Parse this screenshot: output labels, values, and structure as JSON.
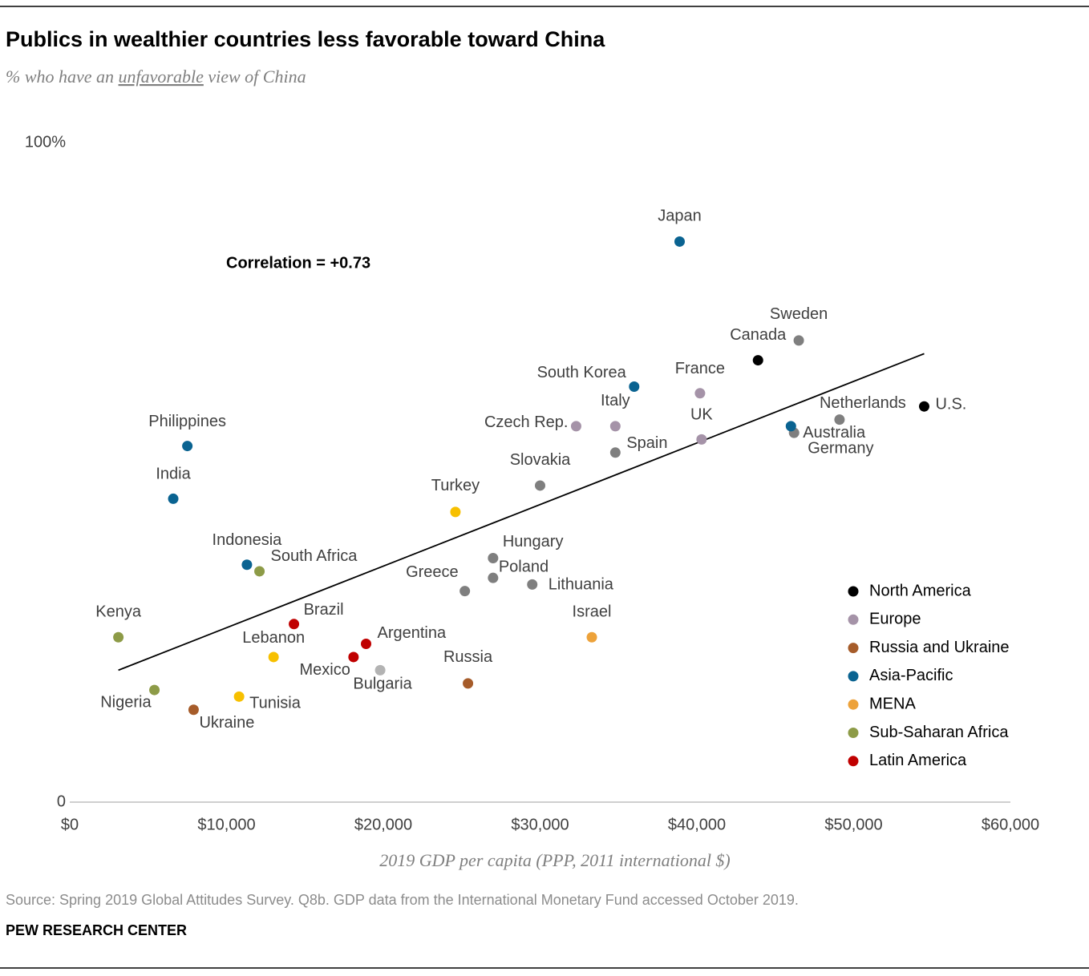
{
  "chart_data": {
    "type": "scatter",
    "title": "Publics in wealthier countries less favorable toward China",
    "subtitle": [
      "% who have an ",
      "unfavorable",
      " view of China"
    ],
    "xlabel": "2019 GDP per capita (PPP, 2011 international $)",
    "annotation": "Correlation = +0.73",
    "source": "Source: Spring 2019 Global Attitudes Survey. Q8b. GDP data from the International Monetary Fund accessed October 2019.",
    "credit": "PEW RESEARCH CENTER",
    "xlim": [
      0,
      60000
    ],
    "ylim": [
      0,
      100
    ],
    "xticks": [
      {
        "value": 0,
        "label": "$0"
      },
      {
        "value": 10000,
        "label": "$10,000"
      },
      {
        "value": 20000,
        "label": "$20,000"
      },
      {
        "value": 30000,
        "label": "$30,000"
      },
      {
        "value": 40000,
        "label": "$40,000"
      },
      {
        "value": 50000,
        "label": "$50,000"
      },
      {
        "value": 60000,
        "label": "$60,000"
      }
    ],
    "yticks": [
      0,
      {
        "value": 100,
        "label": "100%"
      }
    ],
    "trendline": {
      "x": [
        3100,
        54500
      ],
      "y": [
        20,
        68
      ],
      "color": "#000000"
    },
    "series": [
      {
        "name": "North America",
        "color": "#000000",
        "labels": [
          "Canada",
          "U.S."
        ],
        "x": [
          43900,
          54500
        ],
        "y": [
          67,
          60
        ]
      },
      {
        "name": "Europe",
        "color": "#a593a8",
        "labels": [
          "Sweden",
          "France",
          "Italy",
          "Czech Rep.",
          "UK",
          "Netherlands",
          "Germany",
          "Spain",
          "Slovakia",
          "Hungary",
          "Poland",
          "Greece",
          "Lithuania",
          "Bulgaria"
        ],
        "x": [
          46500,
          40200,
          34800,
          32300,
          40300,
          49100,
          46200,
          34800,
          30000,
          27000,
          27000,
          25200,
          29500,
          19800
        ],
        "y": [
          70,
          62,
          57,
          57,
          55,
          58,
          56,
          53,
          48,
          37,
          34,
          32,
          33,
          20
        ],
        "point_colors": [
          "#7f7f7f",
          "#a593a8",
          "#a593a8",
          "#a593a8",
          "#a593a8",
          "#7f7f7f",
          "#7f7f7f",
          "#7f7f7f",
          "#7f7f7f",
          "#7f7f7f",
          "#7f7f7f",
          "#7f7f7f",
          "#7f7f7f",
          "#b3b3b3"
        ]
      },
      {
        "name": "Russia and Ukraine",
        "color": "#a65c2a",
        "labels": [
          "Russia",
          "Ukraine"
        ],
        "x": [
          25400,
          7900
        ],
        "y": [
          18,
          14
        ]
      },
      {
        "name": "Asia-Pacific",
        "color": "#0a6391",
        "labels": [
          "Japan",
          "South Korea",
          "Australia",
          "Philippines",
          "India",
          "Indonesia"
        ],
        "x": [
          38900,
          36000,
          46000,
          7500,
          6600,
          11300
        ],
        "y": [
          85,
          63,
          57,
          54,
          46,
          36
        ]
      },
      {
        "name": "MENA",
        "color": "#eda23a",
        "labels": [
          "Turkey",
          "Israel",
          "Lebanon",
          "Tunisia"
        ],
        "x": [
          24600,
          33300,
          13000,
          10800
        ],
        "y": [
          44,
          25,
          22,
          16
        ],
        "point_colors": [
          "#f7c000",
          "#eda23a",
          "#f7c000",
          "#f7c000"
        ]
      },
      {
        "name": "Sub-Saharan Africa",
        "color": "#8d9b47",
        "labels": [
          "South Africa",
          "Kenya",
          "Nigeria"
        ],
        "x": [
          12100,
          3100,
          5400
        ],
        "y": [
          35,
          25,
          17
        ]
      },
      {
        "name": "Latin America",
        "color": "#c00000",
        "labels": [
          "Brazil",
          "Argentina",
          "Mexico"
        ],
        "x": [
          14300,
          18900,
          18100
        ],
        "y": [
          27,
          24,
          22
        ]
      }
    ]
  }
}
